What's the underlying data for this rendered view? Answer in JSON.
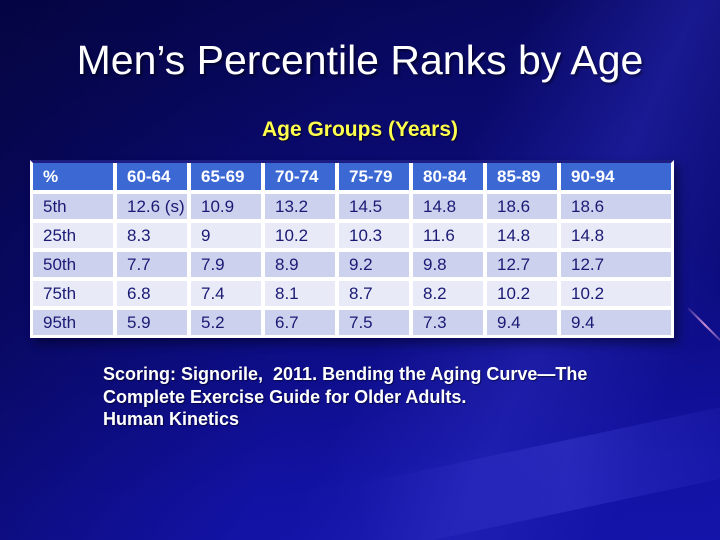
{
  "slide": {
    "title": "Men’s Percentile Ranks by Age",
    "subtitle": "Age Groups (Years)"
  },
  "table": {
    "columns": [
      "%",
      "60-64",
      "65-69",
      "70-74",
      "75-79",
      "80-84",
      "85-89",
      "90-94"
    ],
    "rows": [
      {
        "label": "5th",
        "values": [
          "12.6 (s)",
          "10.9",
          "13.2",
          "14.5",
          "14.8",
          "18.6",
          "18.6"
        ]
      },
      {
        "label": "25th",
        "values": [
          "8.3",
          "9",
          "10.2",
          "10.3",
          "11.6",
          "14.8",
          "14.8"
        ]
      },
      {
        "label": "50th",
        "values": [
          "7.7",
          "7.9",
          "8.9",
          "9.2",
          "9.8",
          "12.7",
          "12.7"
        ]
      },
      {
        "label": "75th",
        "values": [
          "6.8",
          "7.4",
          "8.1",
          "8.7",
          "8.2",
          "10.2",
          "10.2"
        ]
      },
      {
        "label": "95th",
        "values": [
          "5.9",
          "5.2",
          "6.7",
          "7.5",
          "7.3",
          "9.4",
          "9.4"
        ]
      }
    ]
  },
  "citation": {
    "line1": "Scoring: Signorile,  2011. Bending the Aging Curve—The",
    "line2": "Complete Exercise Guide for Older Adults.",
    "line3": "Human Kinetics"
  },
  "colors": {
    "background_top": "#08085e",
    "background_bottom": "#1414aa",
    "title_text": "#ffffff",
    "subtitle_text": "#ffff4d",
    "header_bg": "#3c68d4",
    "header_text": "#ffffff",
    "row_odd_bg": "#ccd1ed",
    "row_even_bg": "#e8eaf7",
    "cell_text": "#1a1a75",
    "table_border": "#ffffff",
    "table_top_border": "#1d1d82",
    "pink_line": "#cf93d8"
  }
}
